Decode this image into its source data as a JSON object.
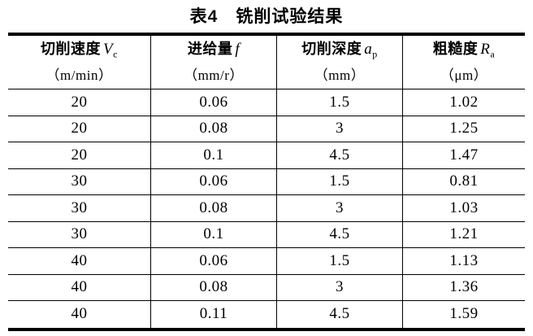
{
  "page": {
    "background": "#ffffff",
    "text_color": "#000000",
    "rule_color": "#000000"
  },
  "title": "表4　铣削试验结果",
  "table": {
    "columns": [
      {
        "label": "切削速度",
        "symbol": "V",
        "subscript": "c",
        "unit": "（m/min）"
      },
      {
        "label": "进给量",
        "symbol": "f",
        "subscript": "",
        "unit": "（mm/r）"
      },
      {
        "label": "切削深度",
        "symbol": "a",
        "subscript": "p",
        "unit": "（mm）"
      },
      {
        "label": "粗糙度",
        "symbol": "R",
        "subscript": "a",
        "unit": "（μm）"
      }
    ],
    "rows": [
      [
        "20",
        "0.06",
        "1.5",
        "1.02"
      ],
      [
        "20",
        "0.08",
        "3",
        "1.25"
      ],
      [
        "20",
        "0.1",
        "4.5",
        "1.47"
      ],
      [
        "30",
        "0.06",
        "1.5",
        "0.81"
      ],
      [
        "30",
        "0.08",
        "3",
        "1.03"
      ],
      [
        "30",
        "0.1",
        "4.5",
        "1.21"
      ],
      [
        "40",
        "0.06",
        "1.5",
        "1.13"
      ],
      [
        "40",
        "0.08",
        "3",
        "1.36"
      ],
      [
        "40",
        "0.11",
        "4.5",
        "1.59"
      ]
    ]
  }
}
